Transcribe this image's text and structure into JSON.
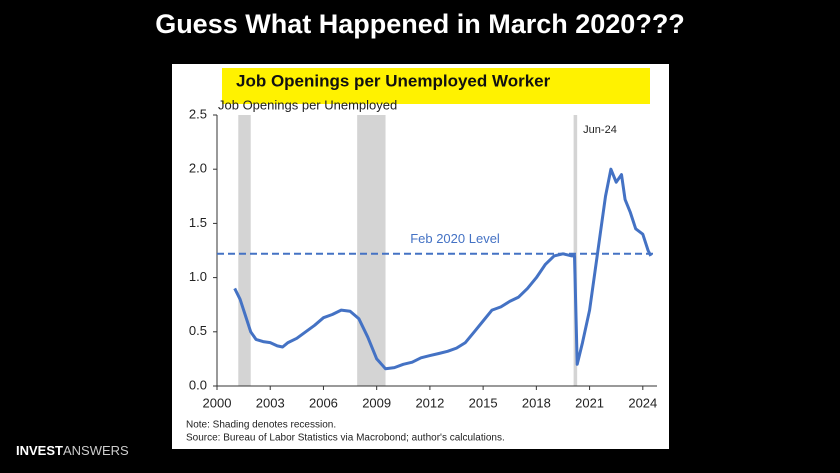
{
  "slide": {
    "title": "Guess What Happened in March 2020???",
    "brand": {
      "bold": "INVEST",
      "light": "ANSWERS"
    }
  },
  "chart_data": {
    "type": "line",
    "title": "Job Openings per Unemployed Worker",
    "y_label": "Job Openings per Unemployed",
    "annotation": "Jun-24",
    "note": "Note: Shading denotes recession.",
    "source": "Source: Bureau of Labor Statistics via Macrobond; author's calculations.",
    "reference_line": {
      "value": 1.22,
      "label": "Feb 2020 Level",
      "color": "#4472c4"
    },
    "recessions": [
      [
        2001.2,
        2001.9
      ],
      [
        2007.9,
        2009.5
      ],
      [
        2020.1,
        2020.3
      ]
    ],
    "xlim": [
      2000,
      2024.8
    ],
    "ylim": [
      0,
      2.5
    ],
    "xticks": [
      2000,
      2003,
      2006,
      2009,
      2012,
      2015,
      2018,
      2021,
      2024
    ],
    "yticks": [
      {
        "value": 0,
        "label": "0.0"
      },
      0.5,
      {
        "value": 1,
        "label": "1.0"
      },
      1.5,
      {
        "value": 2,
        "label": "2.0"
      },
      2.5
    ],
    "grid": false,
    "series": [
      {
        "name": "Job Openings per Unemployed Worker",
        "color": "#4472c4",
        "x": [
          2001.0,
          2001.3,
          2001.6,
          2001.9,
          2002.2,
          2002.6,
          2003.0,
          2003.4,
          2003.7,
          2004.0,
          2004.5,
          2005.0,
          2005.5,
          2006.0,
          2006.5,
          2007.0,
          2007.5,
          2008.0,
          2008.5,
          2009.0,
          2009.5,
          2010.0,
          2010.5,
          2011.0,
          2011.5,
          2012.0,
          2012.5,
          2013.0,
          2013.5,
          2014.0,
          2014.5,
          2015.0,
          2015.5,
          2016.0,
          2016.5,
          2017.0,
          2017.5,
          2018.0,
          2018.5,
          2019.0,
          2019.5,
          2020.0,
          2020.15,
          2020.3,
          2020.6,
          2021.0,
          2021.3,
          2021.6,
          2021.9,
          2022.2,
          2022.5,
          2022.8,
          2023.0,
          2023.3,
          2023.6,
          2024.0,
          2024.3,
          2024.45
        ],
        "values": [
          0.9,
          0.8,
          0.65,
          0.5,
          0.43,
          0.41,
          0.4,
          0.37,
          0.36,
          0.4,
          0.44,
          0.5,
          0.56,
          0.63,
          0.66,
          0.7,
          0.69,
          0.62,
          0.45,
          0.25,
          0.16,
          0.17,
          0.2,
          0.22,
          0.26,
          0.28,
          0.3,
          0.32,
          0.35,
          0.4,
          0.5,
          0.6,
          0.7,
          0.73,
          0.78,
          0.82,
          0.9,
          1.0,
          1.12,
          1.2,
          1.22,
          1.2,
          1.2,
          0.2,
          0.4,
          0.7,
          1.05,
          1.4,
          1.75,
          2.0,
          1.88,
          1.95,
          1.72,
          1.6,
          1.45,
          1.4,
          1.25,
          1.2
        ]
      }
    ]
  }
}
